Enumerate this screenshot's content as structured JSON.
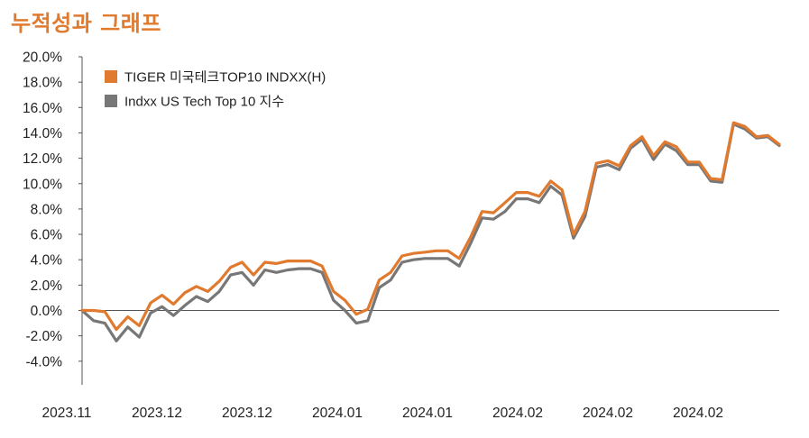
{
  "page_title": "누적성과 그래프",
  "chart_data": {
    "type": "line",
    "title": "",
    "xlabel": "",
    "ylabel": "",
    "ylim": [
      -6,
      20
    ],
    "y_ticks": [
      "20.0%",
      "18.0%",
      "16.0%",
      "14.0%",
      "12.0%",
      "10.0%",
      "8.0%",
      "6.0%",
      "4.0%",
      "2.0%",
      "0.0%",
      "-2.0%",
      "-4.0%"
    ],
    "y_tick_values": [
      20,
      18,
      16,
      14,
      12,
      10,
      8,
      6,
      4,
      2,
      0,
      -2,
      -4
    ],
    "x_ticks": [
      "2023.11",
      "2023.12",
      "2023.12",
      "2024.01",
      "2024.01",
      "2024.02",
      "2024.02",
      "2024.02"
    ],
    "grid": false,
    "zero_line": true,
    "legend_position": "top-left",
    "series": [
      {
        "name": "TIGER 미국테크TOP10 INDXX(H)",
        "color": "#e07a2f",
        "values": [
          0.0,
          0.0,
          -0.1,
          -1.5,
          -0.5,
          -1.2,
          0.6,
          1.2,
          0.5,
          1.4,
          1.9,
          1.5,
          2.3,
          3.4,
          3.8,
          2.8,
          3.8,
          3.7,
          3.9,
          3.9,
          3.9,
          3.5,
          1.5,
          0.8,
          -0.3,
          0.1,
          2.4,
          3.0,
          4.3,
          4.5,
          4.6,
          4.7,
          4.7,
          4.1,
          5.8,
          7.8,
          7.7,
          8.5,
          9.3,
          9.3,
          9.0,
          10.2,
          9.5,
          6.0,
          7.8,
          11.6,
          11.8,
          11.4,
          13.0,
          13.7,
          12.2,
          13.3,
          12.9,
          11.7,
          11.7,
          10.4,
          10.3,
          14.8,
          14.5,
          13.7,
          13.8,
          13.1
        ]
      },
      {
        "name": "Indxx US Tech Top 10 지수",
        "color": "#777777",
        "values": [
          0.0,
          -0.8,
          -1.0,
          -2.4,
          -1.3,
          -2.1,
          -0.2,
          0.3,
          -0.4,
          0.4,
          1.1,
          0.7,
          1.5,
          2.8,
          3.0,
          2.0,
          3.2,
          3.0,
          3.2,
          3.3,
          3.3,
          3.0,
          0.8,
          0.0,
          -1.0,
          -0.8,
          1.8,
          2.4,
          3.8,
          4.0,
          4.1,
          4.1,
          4.1,
          3.5,
          5.3,
          7.3,
          7.2,
          7.8,
          8.8,
          8.8,
          8.5,
          9.8,
          9.1,
          5.7,
          7.4,
          11.3,
          11.5,
          11.1,
          12.8,
          13.5,
          11.9,
          13.1,
          12.6,
          11.5,
          11.5,
          10.2,
          10.1,
          14.7,
          14.3,
          13.6,
          13.7,
          13.0
        ]
      }
    ]
  }
}
